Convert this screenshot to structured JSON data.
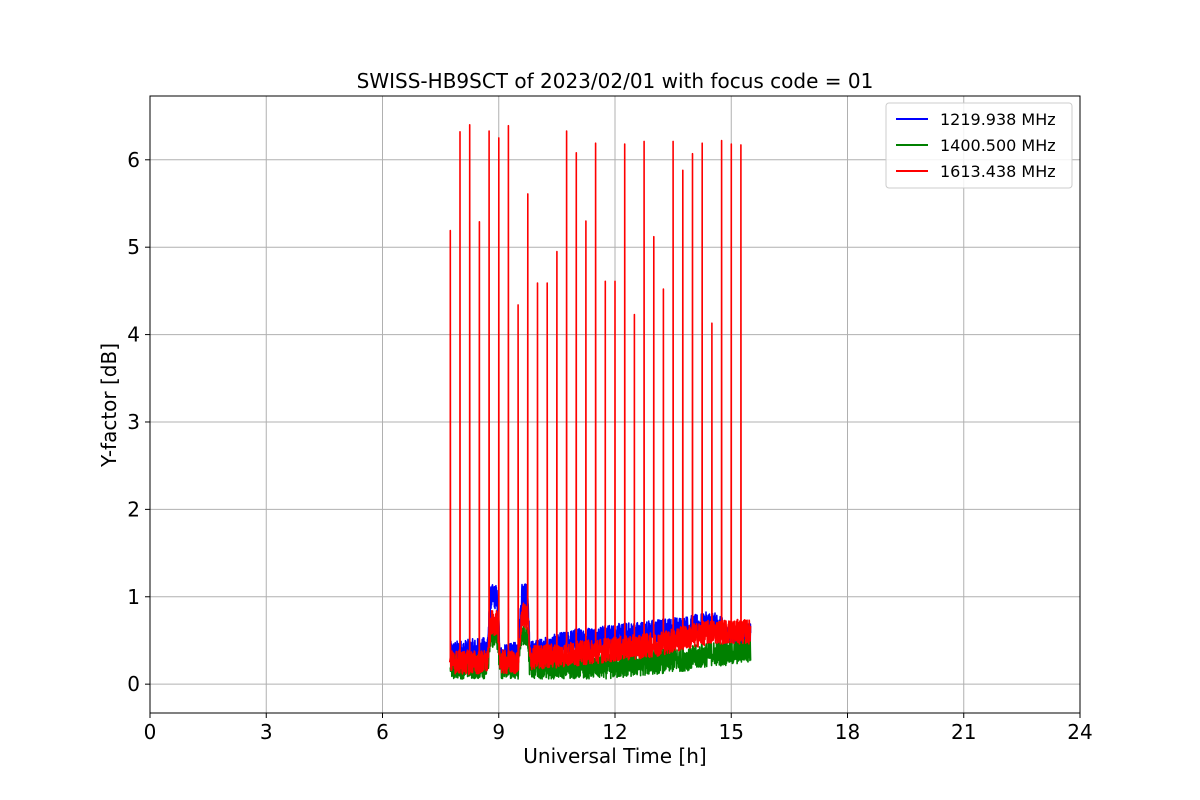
{
  "chart_data": {
    "type": "line",
    "title": "SWISS-HB9SCT of 2023/02/01 with focus code = 01",
    "xlabel": "Universal Time [h]",
    "ylabel": "Y-factor [dB]",
    "xlim": [
      0,
      24
    ],
    "ylim": [
      -0.33,
      6.73
    ],
    "xticks": [
      0,
      3,
      6,
      9,
      12,
      15,
      18,
      21,
      24
    ],
    "yticks": [
      0,
      1,
      2,
      3,
      4,
      5,
      6
    ],
    "grid": true,
    "legend_position": "top-right",
    "data_span_hours": [
      7.75,
      15.5
    ],
    "series": [
      {
        "name": "1219.938 MHz",
        "color": "#0000ff",
        "baseline": [
          [
            7.75,
            0.35
          ],
          [
            8.7,
            0.4
          ],
          [
            8.8,
            1.0
          ],
          [
            8.95,
            1.0
          ],
          [
            9.05,
            0.3
          ],
          [
            9.5,
            0.35
          ],
          [
            9.6,
            1.05
          ],
          [
            9.75,
            1.0
          ],
          [
            9.8,
            0.35
          ],
          [
            11.0,
            0.5
          ],
          [
            12.0,
            0.55
          ],
          [
            13.0,
            0.6
          ],
          [
            14.0,
            0.65
          ],
          [
            14.5,
            0.7
          ],
          [
            15.0,
            0.55
          ],
          [
            15.5,
            0.55
          ]
        ]
      },
      {
        "name": "1400.500 MHz",
        "color": "#008000",
        "baseline": [
          [
            7.75,
            0.2
          ],
          [
            8.7,
            0.2
          ],
          [
            8.8,
            0.55
          ],
          [
            8.95,
            0.55
          ],
          [
            9.05,
            0.2
          ],
          [
            9.5,
            0.2
          ],
          [
            9.6,
            0.6
          ],
          [
            9.75,
            0.55
          ],
          [
            9.8,
            0.2
          ],
          [
            11.0,
            0.2
          ],
          [
            12.0,
            0.2
          ],
          [
            13.0,
            0.25
          ],
          [
            14.0,
            0.3
          ],
          [
            14.5,
            0.35
          ],
          [
            15.0,
            0.35
          ],
          [
            15.5,
            0.4
          ]
        ]
      },
      {
        "name": "1613.438 MHz",
        "color": "#ff0000",
        "baseline": [
          [
            7.75,
            0.25
          ],
          [
            8.7,
            0.25
          ],
          [
            8.8,
            0.7
          ],
          [
            8.95,
            0.7
          ],
          [
            9.05,
            0.25
          ],
          [
            9.5,
            0.25
          ],
          [
            9.6,
            0.8
          ],
          [
            9.75,
            0.75
          ],
          [
            9.8,
            0.3
          ],
          [
            11.0,
            0.35
          ],
          [
            12.0,
            0.4
          ],
          [
            13.0,
            0.45
          ],
          [
            14.0,
            0.55
          ],
          [
            14.5,
            0.6
          ],
          [
            15.0,
            0.6
          ],
          [
            15.5,
            0.6
          ]
        ],
        "spikes": [
          [
            7.75,
            5.19
          ],
          [
            8.0,
            6.32
          ],
          [
            8.25,
            6.4
          ],
          [
            8.5,
            5.29
          ],
          [
            8.75,
            6.33
          ],
          [
            9.0,
            6.25
          ],
          [
            9.25,
            6.39
          ],
          [
            9.5,
            4.34
          ],
          [
            9.75,
            5.61
          ],
          [
            10.0,
            4.59
          ],
          [
            10.25,
            4.59
          ],
          [
            10.5,
            4.95
          ],
          [
            10.75,
            6.33
          ],
          [
            11.0,
            6.08
          ],
          [
            11.25,
            5.3
          ],
          [
            11.5,
            6.19
          ],
          [
            11.75,
            4.61
          ],
          [
            12.0,
            4.61
          ],
          [
            12.25,
            6.18
          ],
          [
            12.5,
            4.23
          ],
          [
            12.75,
            6.21
          ],
          [
            13.0,
            5.12
          ],
          [
            13.25,
            4.52
          ],
          [
            13.5,
            6.21
          ],
          [
            13.75,
            5.88
          ],
          [
            14.0,
            6.07
          ],
          [
            14.25,
            6.19
          ],
          [
            14.5,
            4.13
          ],
          [
            14.75,
            6.22
          ],
          [
            15.0,
            6.18
          ],
          [
            15.25,
            6.17
          ]
        ]
      }
    ]
  }
}
